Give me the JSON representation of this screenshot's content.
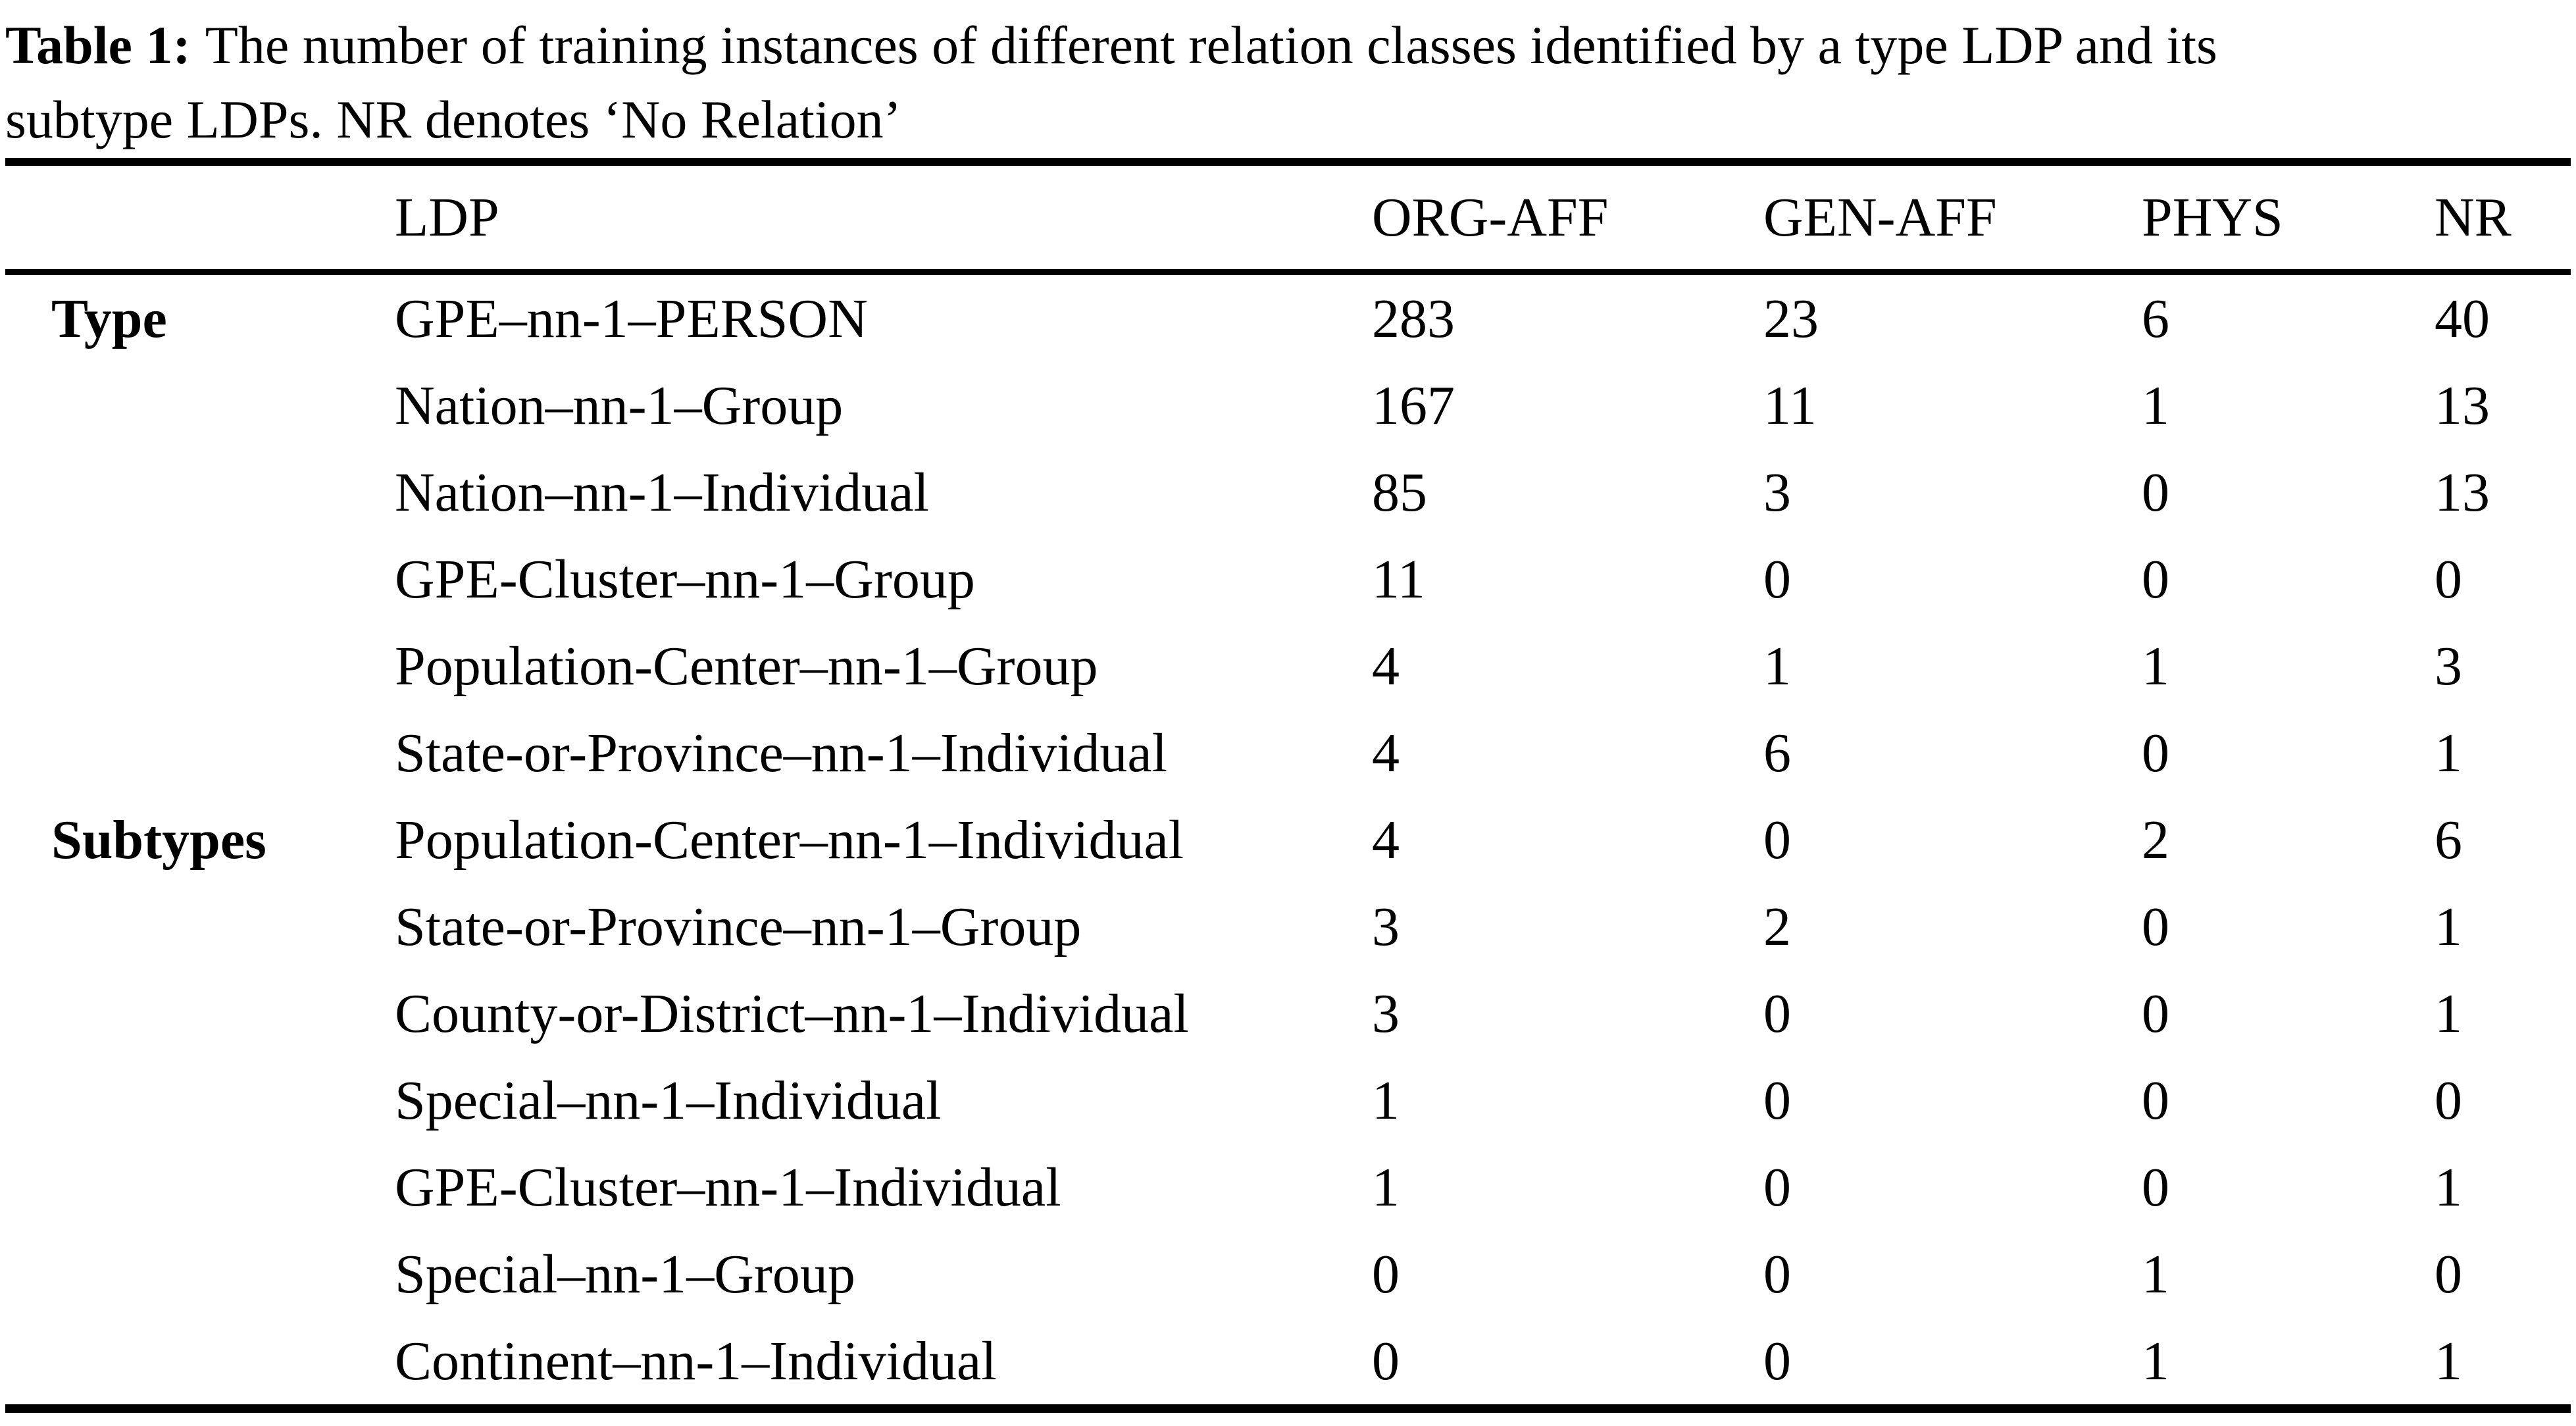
{
  "caption": {
    "label": "Table 1:",
    "text_line1": "The number of training instances of different relation classes identified by a type LDP and its",
    "text_line2": "subtype LDPs. NR denotes ‘No Relation’"
  },
  "table": {
    "headers": {
      "group": "",
      "ldp": "LDP",
      "org_aff": "ORG-AFF",
      "gen_aff": "GEN-AFF",
      "phys": "PHYS",
      "nr": "NR"
    },
    "rows": [
      {
        "group": "Type",
        "ldp": "GPE–nn-1–PERSON",
        "values": [
          283,
          23,
          6,
          40
        ]
      },
      {
        "group": "",
        "ldp": "Nation–nn-1–Group",
        "values": [
          167,
          11,
          1,
          13
        ]
      },
      {
        "group": "",
        "ldp": "Nation–nn-1–Individual",
        "values": [
          85,
          3,
          0,
          13
        ]
      },
      {
        "group": "",
        "ldp": "GPE-Cluster–nn-1–Group",
        "values": [
          11,
          0,
          0,
          0
        ]
      },
      {
        "group": "",
        "ldp": "Population-Center–nn-1–Group",
        "values": [
          4,
          1,
          1,
          3
        ]
      },
      {
        "group": "",
        "ldp": "State-or-Province–nn-1–Individual",
        "values": [
          4,
          6,
          0,
          1
        ]
      },
      {
        "group": "Subtypes",
        "ldp": "Population-Center–nn-1–Individual",
        "values": [
          4,
          0,
          2,
          6
        ]
      },
      {
        "group": "",
        "ldp": "State-or-Province–nn-1–Group",
        "values": [
          3,
          2,
          0,
          1
        ]
      },
      {
        "group": "",
        "ldp": "County-or-District–nn-1–Individual",
        "values": [
          3,
          0,
          0,
          1
        ]
      },
      {
        "group": "",
        "ldp": "Special–nn-1–Individual",
        "values": [
          1,
          0,
          0,
          0
        ]
      },
      {
        "group": "",
        "ldp": "GPE-Cluster–nn-1–Individual",
        "values": [
          1,
          0,
          0,
          1
        ]
      },
      {
        "group": "",
        "ldp": "Special–nn-1–Group",
        "values": [
          0,
          0,
          1,
          0
        ]
      },
      {
        "group": "",
        "ldp": "Continent–nn-1–Individual",
        "values": [
          0,
          0,
          1,
          1
        ]
      }
    ]
  }
}
